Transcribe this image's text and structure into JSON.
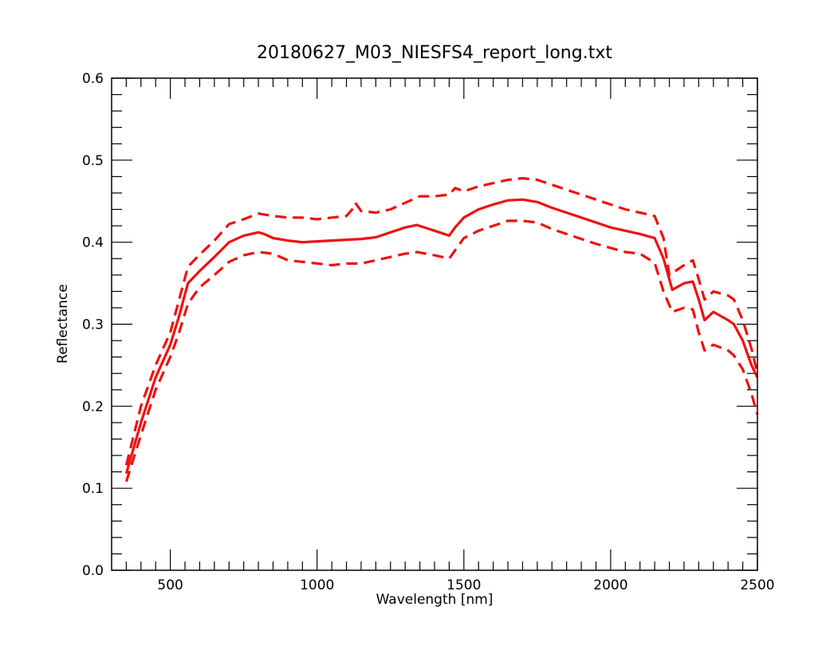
{
  "chart_data": {
    "type": "line",
    "title": "20180627_M03_NIESFS4_report_long.txt",
    "xlabel": "Wavelength [nm]",
    "ylabel": "Reflectance",
    "xlim": [
      300,
      2500
    ],
    "ylim": [
      0,
      0.6
    ],
    "x_major_ticks": [
      500,
      1000,
      1500,
      2000,
      2500
    ],
    "y_major_ticks": [
      0.0,
      0.1,
      0.2,
      0.3,
      0.4,
      0.5,
      0.6
    ],
    "x_tick_labels": [
      "500",
      "1000",
      "1500",
      "2000",
      "2500"
    ],
    "y_tick_labels": [
      "0.0",
      "0.1",
      "0.2",
      "0.3",
      "0.4",
      "0.5",
      "0.6"
    ],
    "grid": false,
    "legend": "none",
    "color": "#ee1111",
    "series": [
      {
        "style": "solid",
        "x": [
          350,
          400,
          450,
          500,
          530,
          560,
          600,
          650,
          700,
          750,
          800,
          820,
          850,
          900,
          950,
          1000,
          1050,
          1100,
          1150,
          1200,
          1250,
          1300,
          1340,
          1400,
          1450,
          1470,
          1500,
          1550,
          1600,
          1650,
          1700,
          1750,
          1800,
          1850,
          1900,
          1950,
          2000,
          2050,
          2100,
          2150,
          2180,
          2210,
          2250,
          2280,
          2300,
          2320,
          2350,
          2400,
          2420,
          2450,
          2480,
          2500
        ],
        "y": [
          0.118,
          0.18,
          0.235,
          0.275,
          0.31,
          0.35,
          0.365,
          0.382,
          0.4,
          0.408,
          0.412,
          0.41,
          0.405,
          0.402,
          0.4,
          0.401,
          0.402,
          0.403,
          0.404,
          0.406,
          0.412,
          0.418,
          0.421,
          0.414,
          0.408,
          0.418,
          0.43,
          0.44,
          0.446,
          0.451,
          0.452,
          0.449,
          0.442,
          0.436,
          0.43,
          0.424,
          0.418,
          0.414,
          0.41,
          0.405,
          0.38,
          0.342,
          0.35,
          0.352,
          0.33,
          0.305,
          0.315,
          0.305,
          0.3,
          0.28,
          0.25,
          0.235
        ]
      },
      {
        "style": "dashed",
        "x": [
          350,
          400,
          450,
          500,
          530,
          560,
          600,
          650,
          700,
          750,
          800,
          850,
          900,
          950,
          1000,
          1050,
          1100,
          1120,
          1130,
          1150,
          1200,
          1250,
          1300,
          1350,
          1400,
          1450,
          1470,
          1500,
          1550,
          1600,
          1650,
          1700,
          1750,
          1800,
          1850,
          1900,
          1950,
          2000,
          2050,
          2100,
          2150,
          2180,
          2200,
          2250,
          2280,
          2300,
          2320,
          2350,
          2400,
          2420,
          2450,
          2480,
          2500
        ],
        "y": [
          0.128,
          0.2,
          0.25,
          0.29,
          0.33,
          0.37,
          0.385,
          0.402,
          0.422,
          0.428,
          0.435,
          0.432,
          0.43,
          0.43,
          0.428,
          0.43,
          0.432,
          0.44,
          0.448,
          0.438,
          0.436,
          0.44,
          0.448,
          0.456,
          0.456,
          0.458,
          0.466,
          0.462,
          0.468,
          0.472,
          0.476,
          0.478,
          0.476,
          0.47,
          0.464,
          0.458,
          0.452,
          0.446,
          0.44,
          0.436,
          0.432,
          0.405,
          0.36,
          0.372,
          0.378,
          0.355,
          0.33,
          0.34,
          0.335,
          0.33,
          0.305,
          0.27,
          0.24
        ]
      },
      {
        "style": "dashed",
        "x": [
          350,
          400,
          450,
          500,
          530,
          560,
          600,
          650,
          700,
          750,
          800,
          850,
          900,
          950,
          1000,
          1050,
          1100,
          1150,
          1200,
          1250,
          1300,
          1340,
          1400,
          1450,
          1470,
          1500,
          1550,
          1600,
          1650,
          1700,
          1750,
          1800,
          1850,
          1900,
          1950,
          2000,
          2050,
          2100,
          2150,
          2180,
          2210,
          2250,
          2280,
          2300,
          2320,
          2350,
          2400,
          2420,
          2450,
          2480,
          2500
        ],
        "y": [
          0.108,
          0.165,
          0.22,
          0.26,
          0.29,
          0.325,
          0.345,
          0.36,
          0.376,
          0.384,
          0.388,
          0.386,
          0.378,
          0.376,
          0.374,
          0.372,
          0.374,
          0.374,
          0.378,
          0.382,
          0.386,
          0.388,
          0.384,
          0.38,
          0.39,
          0.405,
          0.414,
          0.42,
          0.426,
          0.426,
          0.424,
          0.416,
          0.41,
          0.404,
          0.398,
          0.393,
          0.388,
          0.386,
          0.375,
          0.34,
          0.315,
          0.32,
          0.318,
          0.29,
          0.268,
          0.275,
          0.268,
          0.262,
          0.245,
          0.215,
          0.19
        ]
      }
    ]
  }
}
